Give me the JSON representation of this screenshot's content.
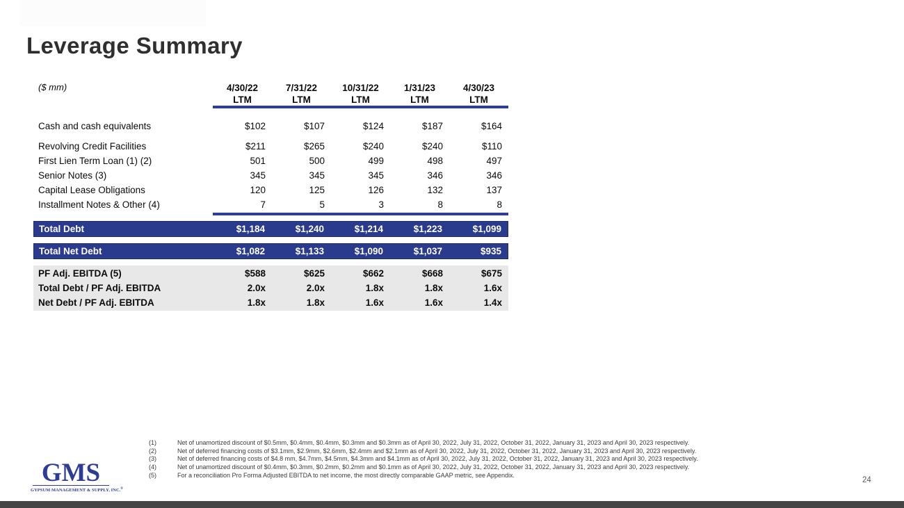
{
  "slide": {
    "title": "Leverage Summary",
    "page_number": "24",
    "logo": {
      "text": "GMS",
      "tagline": "GYPSUM MANAGEMENT & SUPPLY, INC.",
      "registered": "®"
    }
  },
  "table": {
    "units_label": "($ mm)",
    "columns": [
      {
        "date": "4/30/22",
        "period": "LTM"
      },
      {
        "date": "7/31/22",
        "period": "LTM"
      },
      {
        "date": "10/31/22",
        "period": "LTM"
      },
      {
        "date": "1/31/23",
        "period": "LTM"
      },
      {
        "date": "4/30/23",
        "period": "LTM"
      }
    ],
    "rows": [
      {
        "label": "Cash and cash equivalents",
        "values": [
          "$102",
          "$107",
          "$124",
          "$187",
          "$164"
        ]
      },
      {
        "label": "Revolving Credit Facilities",
        "values": [
          "$211",
          "$265",
          "$240",
          "$240",
          "$110"
        ]
      },
      {
        "label": "First Lien Term Loan (1) (2)",
        "values": [
          "501",
          "500",
          "499",
          "498",
          "497"
        ]
      },
      {
        "label": "Senior Notes (3)",
        "values": [
          "345",
          "345",
          "345",
          "346",
          "346"
        ]
      },
      {
        "label": "Capital Lease Obligations",
        "values": [
          "120",
          "125",
          "126",
          "132",
          "137"
        ]
      },
      {
        "label": "Installment Notes & Other (4)",
        "values": [
          "7",
          "5",
          "3",
          "8",
          "8"
        ]
      }
    ],
    "total_rows": [
      {
        "label": "Total Debt",
        "values": [
          "$1,184",
          "$1,240",
          "$1,214",
          "$1,223",
          "$1,099"
        ]
      },
      {
        "label": "Total Net Debt",
        "values": [
          "$1,082",
          "$1,133",
          "$1,090",
          "$1,037",
          "$935"
        ]
      }
    ],
    "metric_rows": [
      {
        "label": "PF Adj. EBITDA (5)",
        "values": [
          "$588",
          "$625",
          "$662",
          "$668",
          "$675"
        ]
      },
      {
        "label": "Total Debt / PF Adj. EBITDA",
        "values": [
          "2.0x",
          "2.0x",
          "1.8x",
          "1.8x",
          "1.6x"
        ]
      },
      {
        "label": "Net Debt / PF Adj. EBITDA",
        "values": [
          "1.8x",
          "1.8x",
          "1.6x",
          "1.6x",
          "1.4x"
        ]
      }
    ]
  },
  "footnotes": [
    {
      "num": "(1)",
      "text": "Net of unamortized discount of $0.5mm, $0.4mm, $0.4mm, $0.3mm and $0.3mm as of April 30, 2022, July 31, 2022, October 31, 2022, January 31, 2023 and April 30, 2023 respectively."
    },
    {
      "num": "(2)",
      "text": "Net of deferred financing costs of $3.1mm, $2.9mm, $2.6mm, $2.4mm and $2.1mm as of April 30, 2022, July 31, 2022, October 31, 2022, January 31, 2023 and April 30, 2023 respectively."
    },
    {
      "num": "(3)",
      "text": "Net of deferred financing costs of $4.8 mm, $4.7mm, $4.5mm, $4.3mm and $4.1mm as of April 30, 2022, July 31, 2022, October 31, 2022, January 31, 2023 and April 30, 2023 respectively."
    },
    {
      "num": "(4)",
      "text": "Net of unamortized discount of $0.4mm, $0.3mm, $0.2mm, $0.2mm and $0.1mm as of April 30, 2022, July 31, 2022, October 31, 2022, January 31, 2023 and April 30, 2023 respectively."
    },
    {
      "num": "(5)",
      "text": "For a reconciliation Pro Forma Adjusted EBITDA to net income, the most directly comparable GAAP metric, see Appendix."
    }
  ],
  "colors": {
    "accent_blue": "#2a3a8c",
    "rule_blue": "#2c3e96",
    "metrics_gray": "#e8e8e8",
    "bottom_bar": "#454545",
    "title_text": "#2f2f2f"
  }
}
